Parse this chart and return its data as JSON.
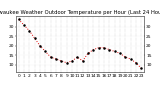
{
  "title": "Milwaukee Weather Outdoor Temperature per Hour (Last 24 Hours)",
  "hours": [
    0,
    1,
    2,
    3,
    4,
    5,
    6,
    7,
    8,
    9,
    10,
    11,
    12,
    13,
    14,
    15,
    16,
    17,
    18,
    19,
    20,
    21,
    22,
    23
  ],
  "temps": [
    34,
    31,
    28,
    24,
    20,
    17,
    14,
    13,
    12,
    11,
    12,
    14,
    12,
    16,
    18,
    19,
    19,
    18,
    17,
    16,
    14,
    13,
    11,
    8
  ],
  "line_color": "#dd0000",
  "marker_color": "#000000",
  "bg_color": "#ffffff",
  "grid_color": "#bbbbbb",
  "ylim": [
    6,
    36
  ],
  "ytick_vals": [
    10,
    15,
    20,
    25,
    30
  ],
  "ytick_labels": [
    "10",
    "15",
    "20",
    "25",
    "30"
  ],
  "title_fontsize": 3.8,
  "tick_fontsize": 3.2,
  "linewidth": 0.7,
  "markersize": 1.6
}
